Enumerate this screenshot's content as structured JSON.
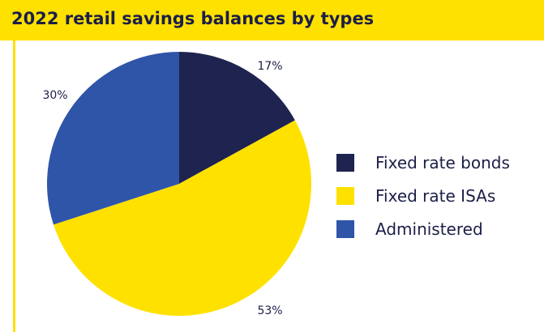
{
  "chart_data": {
    "type": "pie",
    "title": "2022 retail savings balances by types",
    "slices": [
      {
        "name": "Fixed rate bonds",
        "value": 17,
        "label": "17%",
        "color": "#1E234F"
      },
      {
        "name": "Fixed rate ISAs",
        "value": 53,
        "label": "53%",
        "color": "#FFE100"
      },
      {
        "name": "Administered",
        "value": 30,
        "label": "30%",
        "color": "#2F55A8"
      }
    ],
    "legend_position": "right"
  },
  "colors": {
    "accent": "#FFE100",
    "text": "#1b1f48"
  }
}
